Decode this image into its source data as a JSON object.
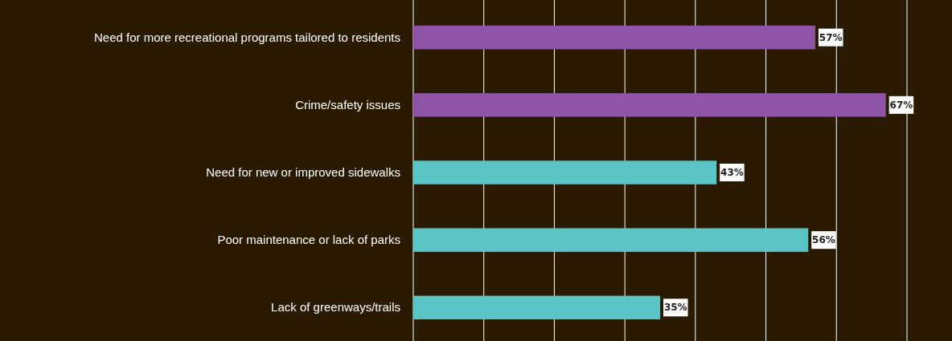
{
  "chart_data": {
    "type": "bar",
    "orientation": "horizontal",
    "categories": [
      "Need for more recreational programs tailored to residents",
      "Crime/safety issues",
      "Need for new or improved sidewalks",
      "Poor maintenance or lack of parks",
      "Lack of greenways/trails"
    ],
    "values": [
      57,
      67,
      43,
      56,
      35
    ],
    "colors": [
      "#8e55a6",
      "#8e55a6",
      "#5bc4c4",
      "#5bc4c4",
      "#5bc4c4"
    ],
    "value_labels": [
      "57%",
      "67%",
      "43%",
      "56%",
      "35%"
    ],
    "xlim": [
      0,
      70
    ],
    "xticks": [
      {
        "value": 0,
        "label": null
      },
      {
        "value": 10,
        "label": null
      },
      {
        "value": 20,
        "label": null
      },
      {
        "value": 30,
        "label": null
      },
      {
        "value": 40,
        "label": null
      },
      {
        "value": 50,
        "label": null
      },
      {
        "value": 60,
        "label": null
      },
      {
        "value": 70,
        "label": null
      }
    ],
    "grid": "x",
    "tick_labels": "y"
  }
}
